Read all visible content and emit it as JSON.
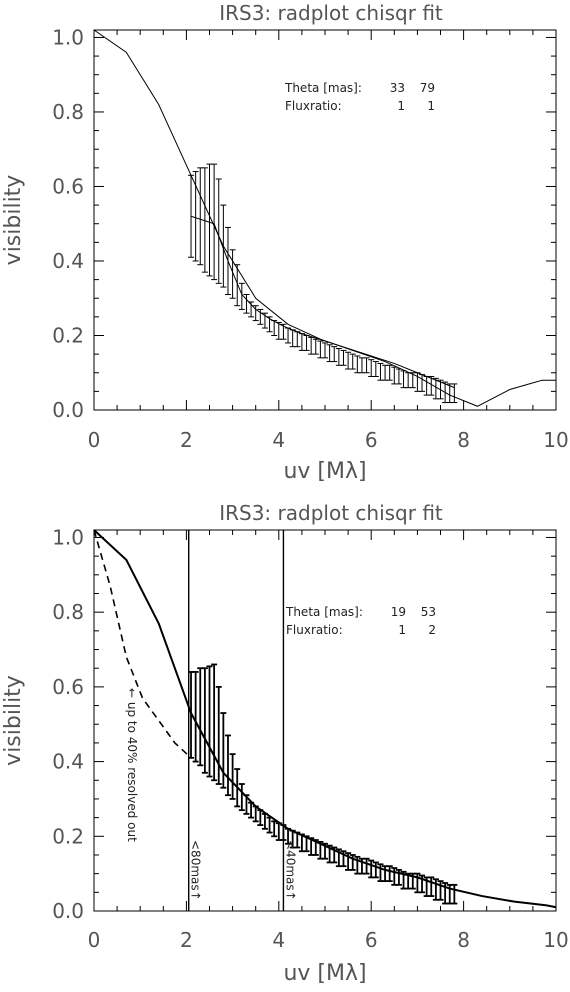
{
  "chart_data": [
    {
      "type": "line",
      "title": "IRS3: radplot chisqr fit",
      "xlabel": "uv [Mλ]",
      "ylabel": "visibility",
      "xlim": [
        0,
        10
      ],
      "ylim": [
        0,
        1.02
      ],
      "xticks": [
        "0",
        "2",
        "4",
        "6",
        "8",
        "10"
      ],
      "yticks": [
        "0.0",
        "0.2",
        "0.4",
        "0.6",
        "0.8",
        "1.0"
      ],
      "annotations": [
        {
          "label": "Theta [mas]:",
          "v1": "33",
          "v2": "79"
        },
        {
          "label": "Fluxratio:",
          "v1": "1",
          "v2": "1"
        }
      ],
      "model": {
        "x": [
          0,
          0.7,
          1.4,
          2.1,
          2.8,
          3.5,
          4.2,
          4.9,
          5.6,
          6.3,
          7.0,
          7.7,
          8.3,
          9.0,
          9.7,
          10
        ],
        "y": [
          1.02,
          0.96,
          0.82,
          0.63,
          0.44,
          0.3,
          0.23,
          0.19,
          0.16,
          0.13,
          0.09,
          0.04,
          0.01,
          0.055,
          0.08,
          0.08
        ]
      },
      "data_curve": {
        "x": [
          2.1,
          2.6,
          2.9,
          3.2,
          3.5,
          3.8,
          4.1,
          4.5,
          5.0,
          5.5,
          6.0,
          6.5,
          7.0,
          7.5,
          7.8
        ],
        "y": [
          0.52,
          0.5,
          0.4,
          0.31,
          0.27,
          0.245,
          0.225,
          0.205,
          0.185,
          0.165,
          0.145,
          0.125,
          0.1,
          0.075,
          0.06
        ]
      },
      "errorbars": {
        "x": [
          2.1,
          2.2,
          2.3,
          2.4,
          2.5,
          2.6,
          2.7,
          2.8,
          2.9,
          3.0,
          3.1,
          3.2,
          3.3,
          3.4,
          3.5,
          3.6,
          3.7,
          3.8,
          3.9,
          4.0,
          4.1,
          4.2,
          4.3,
          4.4,
          4.5,
          4.6,
          4.7,
          4.8,
          4.9,
          5.0,
          5.1,
          5.2,
          5.3,
          5.4,
          5.5,
          5.6,
          5.7,
          5.8,
          5.9,
          6.0,
          6.1,
          6.2,
          6.3,
          6.4,
          6.5,
          6.6,
          6.7,
          6.8,
          6.9,
          7.0,
          7.1,
          7.2,
          7.3,
          7.4,
          7.5,
          7.6,
          7.7,
          7.8
        ],
        "low": [
          0.41,
          0.4,
          0.39,
          0.37,
          0.36,
          0.35,
          0.34,
          0.33,
          0.31,
          0.3,
          0.28,
          0.27,
          0.26,
          0.25,
          0.24,
          0.23,
          0.22,
          0.21,
          0.2,
          0.19,
          0.19,
          0.18,
          0.17,
          0.17,
          0.16,
          0.16,
          0.15,
          0.15,
          0.14,
          0.14,
          0.13,
          0.13,
          0.12,
          0.12,
          0.11,
          0.11,
          0.1,
          0.1,
          0.1,
          0.09,
          0.09,
          0.08,
          0.08,
          0.08,
          0.07,
          0.07,
          0.06,
          0.06,
          0.06,
          0.05,
          0.05,
          0.04,
          0.04,
          0.03,
          0.03,
          0.02,
          0.02,
          0.02
        ],
        "high": [
          0.63,
          0.64,
          0.65,
          0.65,
          0.66,
          0.66,
          0.62,
          0.55,
          0.49,
          0.43,
          0.39,
          0.34,
          0.31,
          0.29,
          0.28,
          0.27,
          0.26,
          0.25,
          0.24,
          0.235,
          0.23,
          0.22,
          0.215,
          0.21,
          0.205,
          0.2,
          0.195,
          0.19,
          0.185,
          0.18,
          0.175,
          0.17,
          0.165,
          0.16,
          0.155,
          0.15,
          0.145,
          0.14,
          0.14,
          0.135,
          0.13,
          0.125,
          0.12,
          0.12,
          0.115,
          0.11,
          0.105,
          0.1,
          0.1,
          0.1,
          0.095,
          0.09,
          0.09,
          0.085,
          0.08,
          0.075,
          0.07,
          0.07
        ]
      }
    },
    {
      "type": "line",
      "title": "IRS3: radplot chisqr fit",
      "xlabel": "uv [Mλ]",
      "ylabel": "visibility",
      "xlim": [
        0,
        10
      ],
      "ylim": [
        0,
        1.02
      ],
      "xticks": [
        "0",
        "2",
        "4",
        "6",
        "8",
        "10"
      ],
      "yticks": [
        "0.0",
        "0.2",
        "0.4",
        "0.6",
        "0.8",
        "1.0"
      ],
      "annotations": [
        {
          "label": "Theta [mas]:",
          "v1": "19",
          "v2": "53"
        },
        {
          "label": "Fluxratio:",
          "v1": "1",
          "v2": "2"
        }
      ],
      "vertical_lines": [
        {
          "x": 2.05,
          "label": "<80mas↑"
        },
        {
          "x": 4.1,
          "label": "<40mas↑"
        }
      ],
      "side_note": "← up to 40% resolved out",
      "model_solid": {
        "x": [
          0,
          0.7,
          1.4,
          2.1,
          2.8,
          3.5,
          4.2,
          4.9,
          5.6,
          6.3,
          7.0,
          7.7,
          8.4,
          9.1,
          9.8,
          10
        ],
        "y": [
          1.02,
          0.94,
          0.77,
          0.53,
          0.37,
          0.28,
          0.22,
          0.18,
          0.14,
          0.11,
          0.09,
          0.06,
          0.04,
          0.025,
          0.015,
          0.01
        ]
      },
      "model_dashed": {
        "x": [
          0,
          0.35,
          0.7,
          1.05,
          1.4,
          1.75,
          2.1
        ],
        "y": [
          1.02,
          0.87,
          0.68,
          0.57,
          0.51,
          0.45,
          0.41
        ]
      },
      "errorbars": {
        "x": [
          2.1,
          2.2,
          2.3,
          2.4,
          2.5,
          2.6,
          2.7,
          2.8,
          2.9,
          3.0,
          3.1,
          3.2,
          3.3,
          3.4,
          3.5,
          3.6,
          3.7,
          3.8,
          3.9,
          4.0,
          4.1,
          4.2,
          4.3,
          4.4,
          4.5,
          4.6,
          4.7,
          4.8,
          4.9,
          5.0,
          5.1,
          5.2,
          5.3,
          5.4,
          5.5,
          5.6,
          5.7,
          5.8,
          5.9,
          6.0,
          6.1,
          6.2,
          6.3,
          6.4,
          6.5,
          6.6,
          6.7,
          6.8,
          6.9,
          7.0,
          7.1,
          7.2,
          7.3,
          7.4,
          7.5,
          7.6,
          7.7,
          7.8
        ],
        "low": [
          0.41,
          0.4,
          0.39,
          0.37,
          0.36,
          0.35,
          0.34,
          0.33,
          0.31,
          0.3,
          0.28,
          0.27,
          0.26,
          0.25,
          0.24,
          0.23,
          0.22,
          0.21,
          0.2,
          0.19,
          0.19,
          0.18,
          0.17,
          0.17,
          0.16,
          0.16,
          0.15,
          0.15,
          0.14,
          0.14,
          0.13,
          0.13,
          0.12,
          0.12,
          0.11,
          0.11,
          0.1,
          0.1,
          0.1,
          0.09,
          0.09,
          0.08,
          0.08,
          0.08,
          0.07,
          0.07,
          0.06,
          0.06,
          0.06,
          0.05,
          0.05,
          0.04,
          0.04,
          0.03,
          0.03,
          0.02,
          0.02,
          0.02
        ],
        "high": [
          0.64,
          0.64,
          0.65,
          0.65,
          0.655,
          0.66,
          0.6,
          0.53,
          0.47,
          0.42,
          0.38,
          0.34,
          0.31,
          0.29,
          0.28,
          0.27,
          0.26,
          0.25,
          0.24,
          0.235,
          0.23,
          0.22,
          0.215,
          0.21,
          0.205,
          0.2,
          0.195,
          0.19,
          0.185,
          0.18,
          0.175,
          0.17,
          0.165,
          0.16,
          0.155,
          0.15,
          0.145,
          0.14,
          0.14,
          0.135,
          0.13,
          0.125,
          0.12,
          0.12,
          0.115,
          0.11,
          0.105,
          0.1,
          0.1,
          0.1,
          0.095,
          0.09,
          0.09,
          0.085,
          0.08,
          0.075,
          0.07,
          0.07
        ]
      }
    }
  ]
}
